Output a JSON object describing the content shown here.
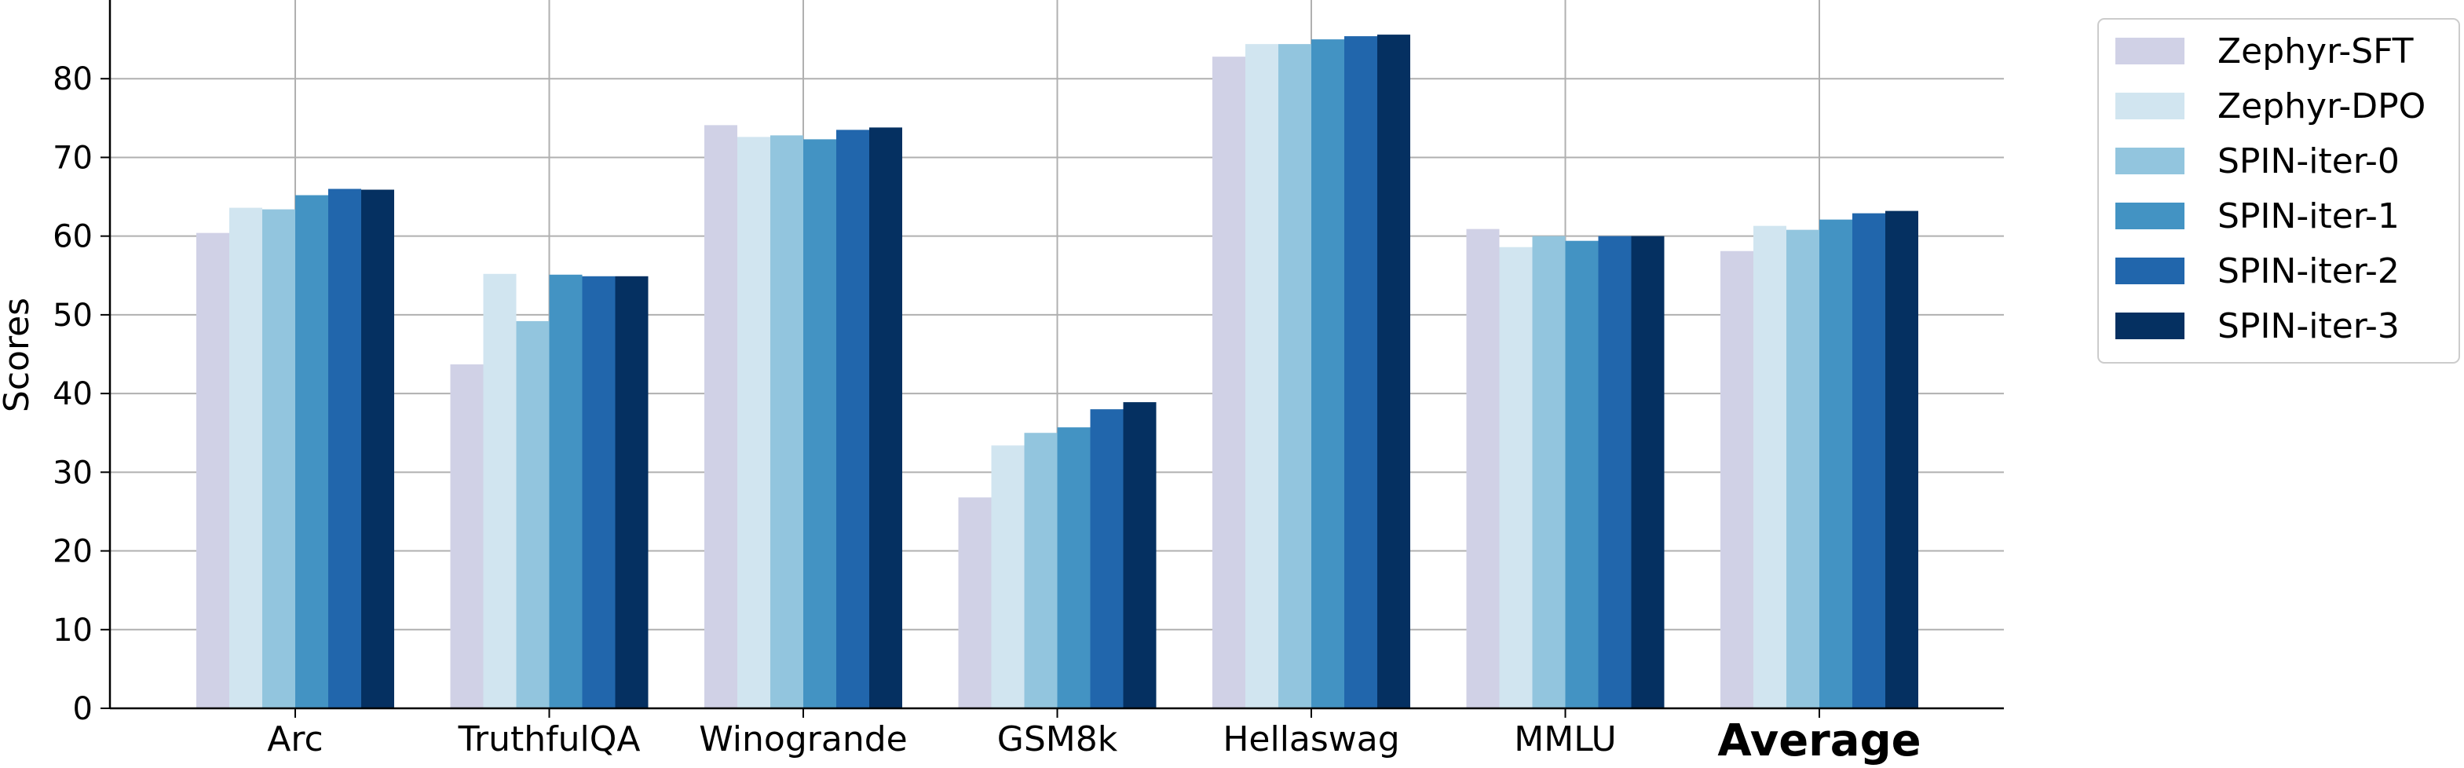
{
  "chart_data": {
    "type": "bar",
    "title": "",
    "xlabel": "",
    "ylabel": "Scores",
    "ylim": [
      0,
      90
    ],
    "yticks": [
      0,
      10,
      20,
      30,
      40,
      50,
      60,
      70,
      80
    ],
    "grid": true,
    "legend_position": "outside-right-top",
    "categories": [
      "Arc",
      "TruthfulQA",
      "Winogrande",
      "GSM8k",
      "Hellaswag",
      "MMLU",
      "Average"
    ],
    "bold_categories": [
      "Average"
    ],
    "series": [
      {
        "name": "Zephyr-SFT",
        "color": "#d0d1e6",
        "values": [
          60.4,
          43.7,
          74.1,
          26.8,
          82.8,
          60.9,
          58.1
        ]
      },
      {
        "name": "Zephyr-DPO",
        "color": "#d1e5f0",
        "values": [
          63.6,
          55.2,
          72.6,
          33.4,
          84.4,
          58.6,
          61.3
        ]
      },
      {
        "name": "SPIN-iter-0",
        "color": "#92c5de",
        "values": [
          63.4,
          49.2,
          72.8,
          35.0,
          84.4,
          60.0,
          60.8
        ]
      },
      {
        "name": "SPIN-iter-1",
        "color": "#4393c3",
        "values": [
          65.2,
          55.1,
          72.3,
          35.7,
          85.0,
          59.4,
          62.1
        ]
      },
      {
        "name": "SPIN-iter-2",
        "color": "#2166ac",
        "values": [
          66.0,
          54.9,
          73.5,
          38.0,
          85.4,
          60.0,
          62.9
        ]
      },
      {
        "name": "SPIN-iter-3",
        "color": "#053061",
        "values": [
          65.9,
          54.9,
          73.8,
          38.9,
          85.6,
          60.0,
          63.2
        ]
      }
    ]
  }
}
